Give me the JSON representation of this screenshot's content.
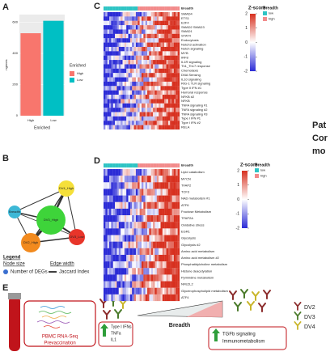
{
  "panel_labels": [
    "A",
    "B",
    "C",
    "D",
    "E"
  ],
  "panel_a": {
    "type": "bar",
    "ylabel": "ngenes",
    "xlabel": "Enriched",
    "categories": [
      "High",
      "Low"
    ],
    "values": [
      530,
      610
    ],
    "colors": [
      "#F8766D",
      "#00BFC4"
    ],
    "ylim": [
      0,
      650
    ],
    "yticks": [
      0,
      200,
      400,
      600
    ],
    "grid": true,
    "legend_title": "Enriched"
  },
  "panel_b": {
    "nodes": [
      "DV4_High",
      "Breadth",
      "DV3_High",
      "DV2_High",
      "DV3_Low"
    ],
    "legend": {
      "title": "Legend",
      "node_size": "Node size",
      "edge_width": "Edge width",
      "node_item": "Number of DEGs",
      "edge_item": "Jaccard Index"
    }
  },
  "panel_c": {
    "breadth_label": "Breadth",
    "rows": [
      "SMAD4",
      "ETS1",
      "E2F4",
      "SMAD2 SMAD3",
      "SMAD1",
      "STAT4",
      "Endocytosis",
      "Notch3 activation",
      "Notch signaling",
      "MYB",
      "IRF8",
      "IL1R signaling",
      "Th1_Th17 response",
      "Chemotaxis",
      "DNA Sensing",
      "IL10 signaling",
      "RIG-1 TLR signaling",
      "Type II IFN #1",
      "Humoral response",
      "NFKB #2",
      "NFKB",
      "TNFA signaling #1",
      "TNFA signaling #2",
      "TNFA signaling #3",
      "Type I IFN #1",
      "Type I IFN #2",
      "RELA"
    ],
    "scale_title": "Z-score",
    "scale_ticks": [
      2,
      1,
      0,
      -1,
      -2
    ],
    "breadth_title": "Breadth",
    "breadth_levels": [
      "low",
      "high"
    ]
  },
  "panel_d": {
    "breadth_label": "Breadth",
    "rows": [
      "Lipid catabolism",
      "MYCN",
      "TFAP2",
      "TCF3",
      "NAD metabolism #1",
      "ATF6",
      "Fructose Metabolism",
      "TFAP2A",
      "Oxidative stress",
      "EGR1",
      "Glycolysis",
      "Glycolysis #2",
      "Amino acid metabolism",
      "Amino acid metabolism #2",
      "Phosphatidylcholine metabolism",
      "Histone deacetylation",
      "Pyrimidine metabolism",
      "NFE2L2",
      "Glycerophospholipid metabolism",
      "ATF4"
    ],
    "scale_title": "Z-score",
    "scale_ticks": [
      2,
      1,
      0,
      -1,
      -2
    ],
    "breadth_title": "Breadth",
    "breadth_levels": [
      "low",
      "high"
    ]
  },
  "panel_e": {
    "assay": "PBMC RNA-Seq",
    "timepoint": "Prevaccination",
    "axis": "Breadth",
    "low_breadth": [
      "Type I IFNs",
      "TNFa",
      "IL1"
    ],
    "high_breadth": [
      "TGFb signaling",
      "Immunometabolism"
    ],
    "serotypes": [
      "DV2",
      "DV3",
      "DV4"
    ]
  },
  "cut_text": [
    "Pat",
    "Cor",
    "mo"
  ],
  "colors": {
    "breadth": [
      "#2ec4c4",
      "#f28b8b"
    ],
    "scale": [
      "#2b2bd6",
      "#ffffff",
      "#d7301f"
    ],
    "serotypes": [
      "#8c2d2d",
      "#4a7a2a",
      "#c9b52a"
    ]
  }
}
